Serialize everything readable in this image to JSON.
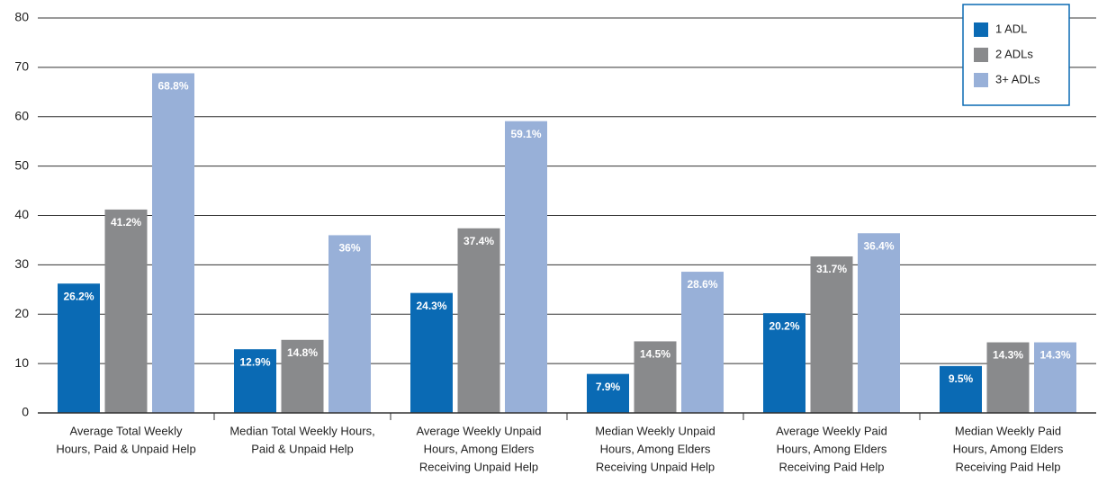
{
  "chart_data": {
    "type": "bar",
    "categories": [
      [
        "Average Total Weekly",
        "Hours, Paid & Unpaid Help"
      ],
      [
        "Median Total Weekly Hours,",
        "Paid & Unpaid Help"
      ],
      [
        "Average Weekly Unpaid",
        "Hours, Among Elders",
        "Receiving Unpaid Help"
      ],
      [
        "Median Weekly Unpaid",
        "Hours, Among Elders",
        "Receiving Unpaid Help"
      ],
      [
        "Average Weekly Paid",
        "Hours, Among Elders",
        "Receiving Paid Help"
      ],
      [
        "Median Weekly Paid",
        "Hours, Among Elders",
        "Receiving Paid Help"
      ]
    ],
    "series": [
      {
        "name": "1 ADL",
        "color": "#0a6ab4",
        "values": [
          26.2,
          12.9,
          24.3,
          7.9,
          20.2,
          9.5
        ],
        "value_labels": [
          "26.2%",
          "12.9%",
          "24.3%",
          "7.9%",
          "20.2%",
          "9.5%"
        ]
      },
      {
        "name": "2 ADLs",
        "color": "#898a8c",
        "values": [
          41.2,
          14.8,
          37.4,
          14.5,
          31.7,
          14.3
        ],
        "value_labels": [
          "41.2%",
          "14.8%",
          "37.4%",
          "14.5%",
          "31.7%",
          "14.3%"
        ]
      },
      {
        "name": "3+ ADLs",
        "color": "#98b0d8",
        "values": [
          68.8,
          36,
          59.1,
          28.6,
          36.4,
          14.3
        ],
        "value_labels": [
          "68.8%",
          "36%",
          "59.1%",
          "28.6%",
          "36.4%",
          "14.3%"
        ]
      }
    ],
    "ylim": [
      0,
      80
    ],
    "yticks": [
      0,
      10,
      20,
      30,
      40,
      50,
      60,
      70,
      80
    ],
    "grid": true,
    "legend": "top-right"
  }
}
